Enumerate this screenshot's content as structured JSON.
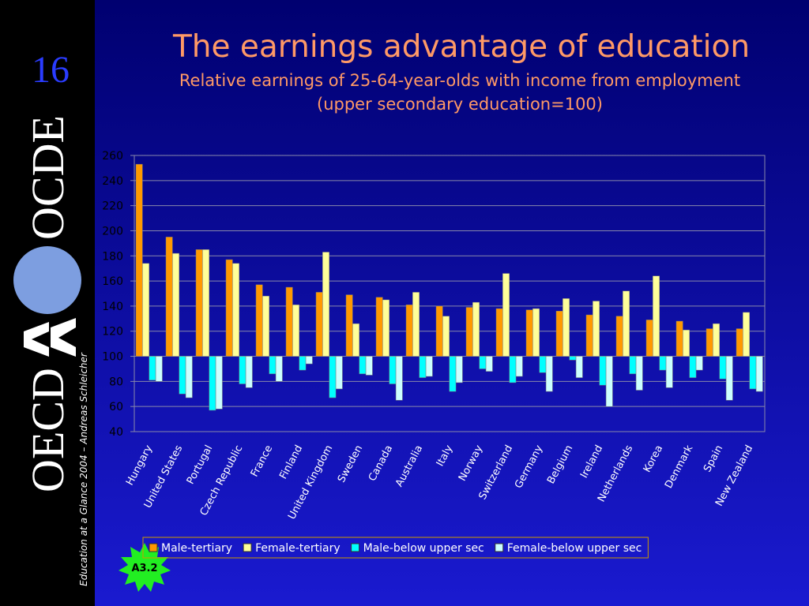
{
  "slide_number": "16",
  "logo": {
    "top": "OCDE",
    "bottom": "OECD"
  },
  "footer": "Education at a Glance 2004 – Andreas Schleicher",
  "badge": "A3.2",
  "chart_data": {
    "type": "bar",
    "title": "The earnings advantage of education",
    "subtitle": [
      "Relative earnings of 25-64-year-olds with income from employment",
      "(upper secondary education=100)"
    ],
    "categories": [
      "Hungary",
      "United States",
      "Portugal",
      "Czech Republic",
      "France",
      "Finland",
      "United Kingdom",
      "Sweden",
      "Canada",
      "Australia",
      "Italy",
      "Norway",
      "Switzerland",
      "Germany",
      "Belgium",
      "Ireland",
      "Netherlands",
      "Korea",
      "Denmark",
      "Spain",
      "New Zealand"
    ],
    "series": [
      {
        "name": "Male-tertiary",
        "color": "#ff9900",
        "values": [
          253,
          195,
          185,
          177,
          157,
          155,
          151,
          149,
          147,
          141,
          140,
          139,
          138,
          137,
          136,
          133,
          132,
          129,
          128,
          122,
          122
        ]
      },
      {
        "name": "Female-tertiary",
        "color": "#ffff99",
        "values": [
          174,
          182,
          185,
          174,
          148,
          141,
          183,
          126,
          145,
          151,
          132,
          143,
          166,
          138,
          146,
          144,
          152,
          164,
          121,
          126,
          135
        ]
      },
      {
        "name": "Male-below upper sec",
        "color": "#00ffff",
        "values": [
          81,
          70,
          57,
          78,
          86,
          89,
          67,
          86,
          78,
          83,
          72,
          90,
          79,
          87,
          97,
          77,
          86,
          89,
          83,
          82,
          74
        ]
      },
      {
        "name": "Female-below upper sec",
        "color": "#ccffff",
        "values": [
          80,
          67,
          58,
          75,
          80,
          94,
          74,
          85,
          65,
          84,
          79,
          88,
          84,
          72,
          83,
          60,
          73,
          75,
          89,
          65,
          72
        ]
      }
    ],
    "baseline": 100,
    "ylim": [
      40,
      260
    ],
    "yticks": [
      40,
      60,
      80,
      100,
      120,
      140,
      160,
      180,
      200,
      220,
      240,
      260
    ],
    "grid": true
  }
}
